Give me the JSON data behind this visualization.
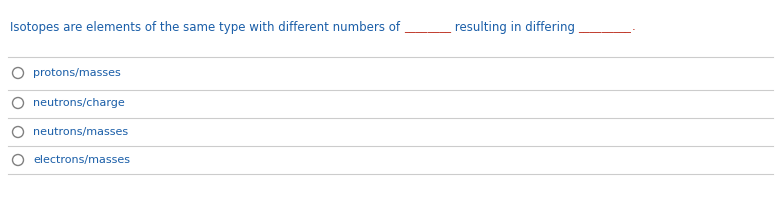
{
  "question_parts": [
    {
      "text": "Isotopes are elements of the same type with different numbers of ",
      "color": "#1a5ea8"
    },
    {
      "text": "________",
      "color": "#c0392b"
    },
    {
      "text": " resulting in differing ",
      "color": "#1a5ea8"
    },
    {
      "text": "_________",
      "color": "#c0392b"
    },
    {
      "text": ".",
      "color": "#c0392b"
    }
  ],
  "options": [
    {
      "label": "protons/masses",
      "color": "#1a5ea8"
    },
    {
      "label": "neutrons/charge",
      "color": "#1a5ea8"
    },
    {
      "label": "neutrons/masses",
      "color": "#1a5ea8"
    },
    {
      "label": "electrons/masses",
      "color": "#1a5ea8"
    }
  ],
  "bg_color": "#ffffff",
  "line_color": "#cccccc",
  "circle_color": "#808080",
  "question_fontsize": 8.5,
  "option_fontsize": 8.0,
  "fig_width": 7.77,
  "fig_height": 1.97,
  "dpi": 100
}
